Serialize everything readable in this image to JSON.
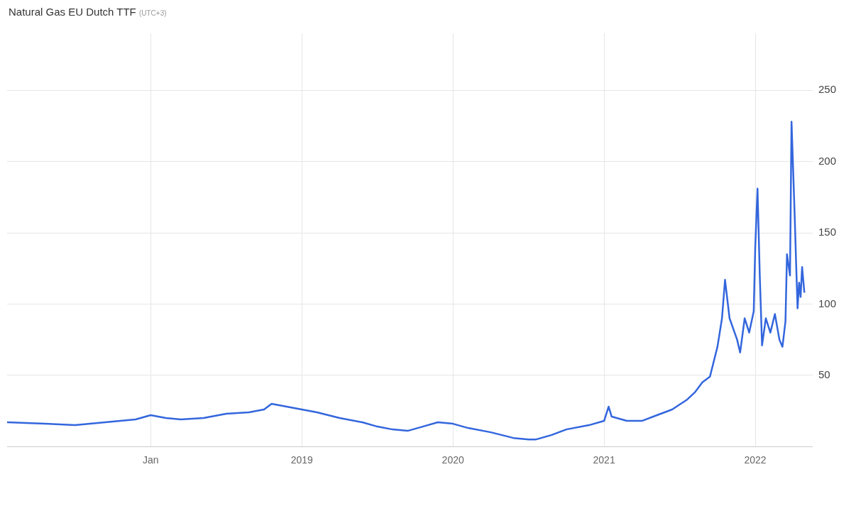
{
  "chart_data": {
    "type": "line",
    "title": "Natural Gas EU Dutch TTF",
    "subtitle": "(UTC+3)",
    "x": [
      2017.05,
      2017.3,
      2017.5,
      2017.7,
      2017.9,
      2018.0,
      2018.1,
      2018.2,
      2018.35,
      2018.5,
      2018.65,
      2018.75,
      2018.8,
      2018.9,
      2019.0,
      2019.1,
      2019.25,
      2019.4,
      2019.5,
      2019.6,
      2019.7,
      2019.8,
      2019.9,
      2020.0,
      2020.1,
      2020.25,
      2020.4,
      2020.5,
      2020.55,
      2020.65,
      2020.75,
      2020.9,
      2021.0,
      2021.03,
      2021.05,
      2021.15,
      2021.25,
      2021.35,
      2021.45,
      2021.55,
      2021.6,
      2021.65,
      2021.7,
      2021.75,
      2021.78,
      2021.8,
      2021.83,
      2021.88,
      2021.9,
      2021.93,
      2021.96,
      2021.99,
      2022.0,
      2022.015,
      2022.03,
      2022.045,
      2022.07,
      2022.1,
      2022.13,
      2022.16,
      2022.18,
      2022.2,
      2022.21,
      2022.23,
      2022.24,
      2022.26,
      2022.27,
      2022.28,
      2022.29,
      2022.3,
      2022.31,
      2022.325
    ],
    "series": [
      {
        "color": "#3366dd",
        "values": [
          17,
          16,
          15,
          17,
          19,
          22,
          20,
          19,
          20,
          23,
          24,
          26,
          30,
          28,
          26,
          24,
          20,
          17,
          14,
          12,
          11,
          14,
          17,
          16,
          13,
          10,
          6,
          5,
          5,
          8,
          12,
          15,
          18,
          28,
          21,
          18,
          18,
          22,
          26,
          33,
          38,
          45,
          49,
          70,
          90,
          117,
          90,
          75,
          66,
          90,
          80,
          95,
          140,
          181,
          120,
          71,
          90,
          80,
          93,
          75,
          70,
          88,
          135,
          120,
          228,
          165,
          130,
          97,
          115,
          105,
          126,
          108
        ]
      }
    ],
    "xlim": [
      2017.05,
      2022.38
    ],
    "xticks": [
      {
        "value": 2018,
        "label": "Jan"
      },
      2019,
      2020,
      2021,
      2022
    ],
    "ylim": [
      0,
      290
    ],
    "yticks": [
      50,
      100,
      150,
      200,
      250
    ],
    "grid": true,
    "marker": "none",
    "line_style": "solid"
  }
}
